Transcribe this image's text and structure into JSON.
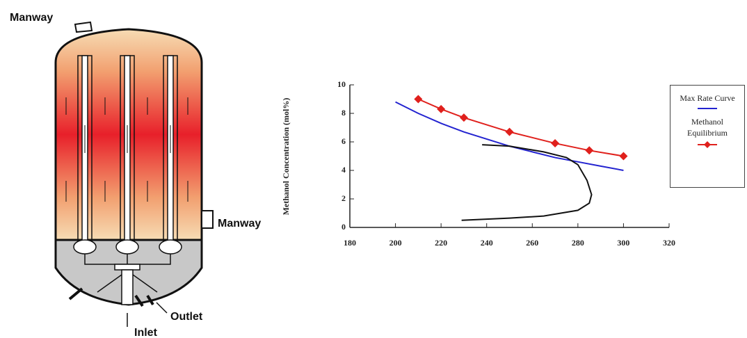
{
  "diagram": {
    "labels": [
      "Manway",
      "Manway",
      "Outlet",
      "Inlet"
    ]
  },
  "chart_data": {
    "type": "line",
    "y_label": "Methanol Concentration (mol%)",
    "xlim": [
      180,
      320
    ],
    "xticks": [
      180,
      200,
      220,
      240,
      260,
      280,
      300,
      320
    ],
    "ylim": [
      0,
      10
    ],
    "yticks": [
      0,
      2,
      4,
      6,
      8,
      10
    ],
    "grid": false,
    "legend": "right",
    "series": [
      {
        "name": "Max Rate Curve",
        "color": "#2323d0",
        "marker": "none",
        "x": [
          200,
          210,
          220,
          230,
          240,
          250,
          260,
          270,
          280,
          290,
          300
        ],
        "values": [
          8.8,
          8.0,
          7.3,
          6.7,
          6.2,
          5.7,
          5.3,
          4.9,
          4.6,
          4.3,
          4.0
        ]
      },
      {
        "name": "Methanol Equilibrium",
        "color": "#e0201c",
        "marker": "diamond",
        "x": [
          210,
          220,
          230,
          250,
          270,
          285,
          300
        ],
        "values": [
          9.0,
          8.3,
          7.7,
          6.7,
          5.9,
          5.4,
          5.0
        ]
      },
      {
        "color": "#111111",
        "marker": "none",
        "x": [
          238,
          250,
          265,
          275,
          280,
          284,
          286,
          285,
          280,
          265,
          250,
          229
        ],
        "values": [
          5.8,
          5.7,
          5.3,
          4.9,
          4.4,
          3.3,
          2.3,
          1.7,
          1.2,
          0.8,
          0.65,
          0.5
        ]
      }
    ]
  }
}
